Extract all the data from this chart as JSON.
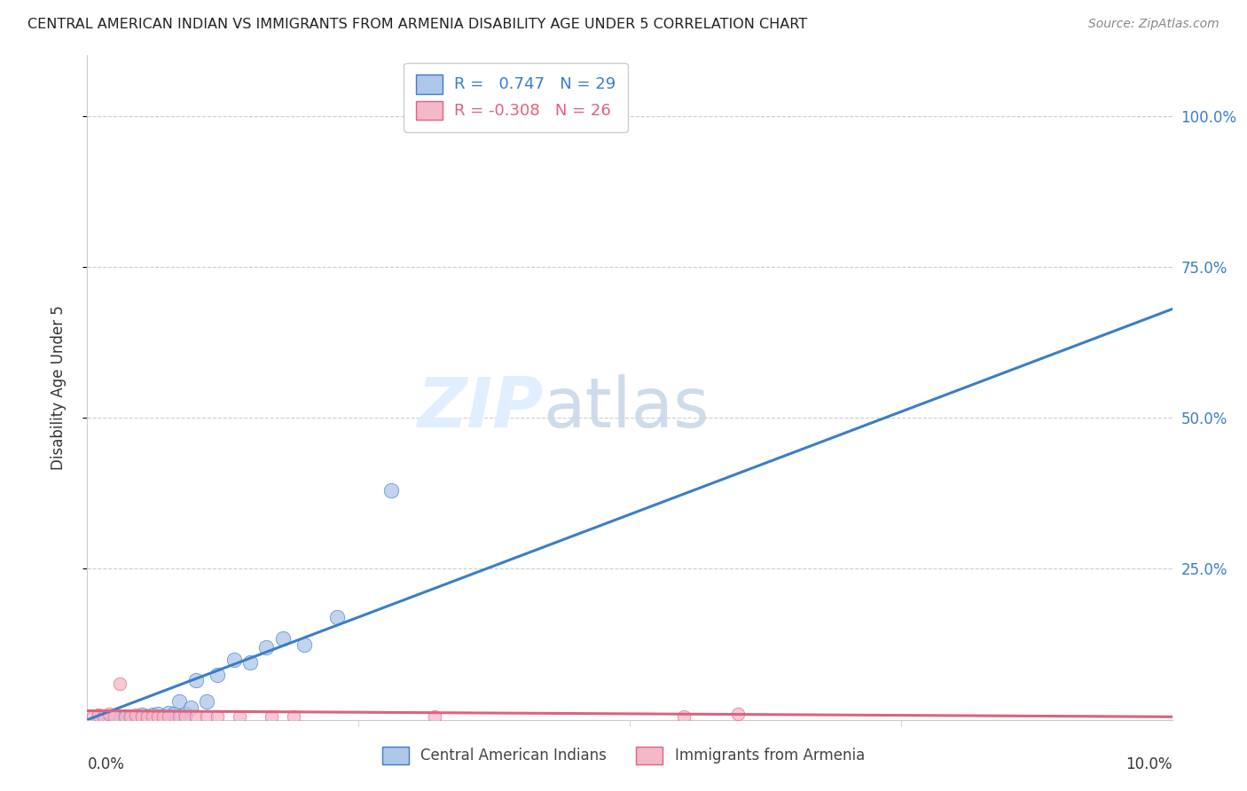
{
  "title": "CENTRAL AMERICAN INDIAN VS IMMIGRANTS FROM ARMENIA DISABILITY AGE UNDER 5 CORRELATION CHART",
  "source": "Source: ZipAtlas.com",
  "ylabel": "Disability Age Under 5",
  "r_blue": 0.747,
  "n_blue": 29,
  "r_pink": -0.308,
  "n_pink": 26,
  "blue_color": "#aec6e8",
  "pink_color": "#f4b8c8",
  "blue_line_color": "#3a7ec8",
  "pink_line_color": "#e06080",
  "legend_blue_label": "Central American Indians",
  "legend_pink_label": "Immigrants from Armenia",
  "watermark_left": "ZIP",
  "watermark_right": "atlas",
  "blue_points_x": [
    0.1,
    0.15,
    0.2,
    0.25,
    0.3,
    0.35,
    0.4,
    0.45,
    0.5,
    0.55,
    0.6,
    0.65,
    0.7,
    0.75,
    0.8,
    0.85,
    0.9,
    0.95,
    1.0,
    1.1,
    1.2,
    1.35,
    1.5,
    1.65,
    1.8,
    2.0,
    2.3,
    2.8,
    4.2
  ],
  "blue_points_y": [
    0.5,
    0.5,
    0.5,
    0.5,
    0.5,
    0.5,
    0.5,
    0.5,
    0.8,
    0.5,
    0.8,
    1.0,
    0.5,
    1.2,
    1.0,
    3.0,
    1.0,
    2.0,
    6.5,
    3.0,
    7.5,
    10.0,
    9.5,
    12.0,
    13.5,
    12.5,
    17.0,
    38.0,
    101.0
  ],
  "pink_points_x": [
    0.05,
    0.1,
    0.15,
    0.2,
    0.25,
    0.3,
    0.35,
    0.4,
    0.45,
    0.5,
    0.55,
    0.6,
    0.65,
    0.7,
    0.75,
    0.85,
    0.9,
    1.0,
    1.1,
    1.2,
    1.4,
    1.7,
    1.9,
    3.2,
    5.5,
    6.0
  ],
  "pink_points_y": [
    0.5,
    0.8,
    0.5,
    1.0,
    0.5,
    6.0,
    0.5,
    0.5,
    0.8,
    0.5,
    0.5,
    0.5,
    0.5,
    0.5,
    0.5,
    0.5,
    0.5,
    0.5,
    0.5,
    0.5,
    0.5,
    0.5,
    0.5,
    0.5,
    0.5,
    1.0
  ],
  "blue_line_x": [
    0.0,
    10.0
  ],
  "blue_line_y": [
    0.0,
    68.0
  ],
  "pink_line_x": [
    0.0,
    10.0
  ],
  "pink_line_y": [
    1.5,
    0.5
  ],
  "xlim": [
    0.0,
    10.0
  ],
  "ylim": [
    0.0,
    110.0
  ],
  "yticks": [
    25.0,
    50.0,
    75.0,
    100.0
  ],
  "ytick_labels": [
    "25.0%",
    "50.0%",
    "75.0%",
    "100.0%"
  ],
  "background_color": "#ffffff",
  "grid_color": "#cccccc"
}
